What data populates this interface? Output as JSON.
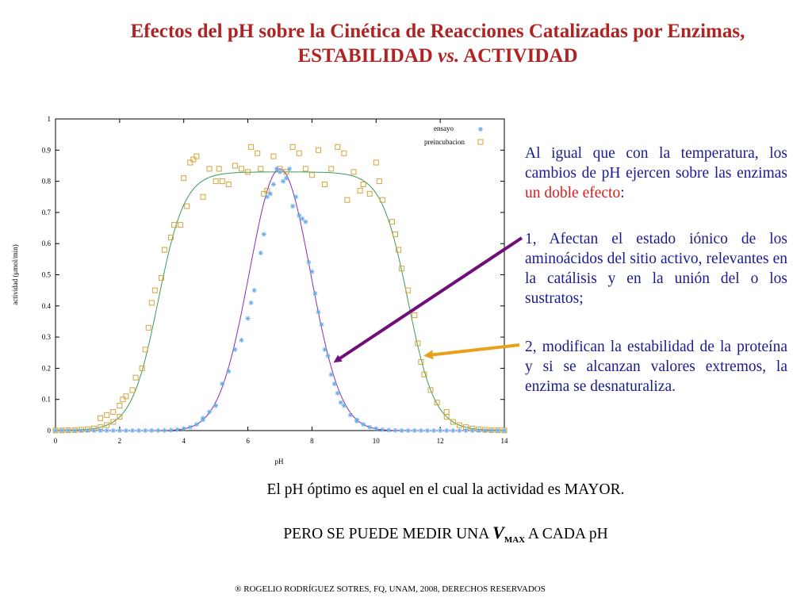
{
  "title": {
    "line1": "Efectos del pH sobre la Cinética de Reacciones Catalizadas por Enzimas,",
    "line2_a": "ESTABILIDAD ",
    "line2_vs": "vs.",
    "line2_b": " ACTIVIDAD"
  },
  "colors": {
    "title": "#b02323",
    "text_blue": "#1b1b8e",
    "highlight_red": "#e01b1b",
    "arrow_purple": "#6f0f78",
    "arrow_orange": "#e8a21a",
    "ensayo_points": "#6aaee6",
    "preincubacion_points": "#d2a53a",
    "green_curve": "#3c9a58",
    "purple_curve": "#8a2bb5"
  },
  "side_text": {
    "p1_before": "Al igual que con la temperatura, los cambios de pH ejercen sobre las enzimas ",
    "p1_red": "un doble efecto",
    "p1_after": ":",
    "p2": "1, Afectan el estado iónico de los aminoácidos del sitio activo, relevantes en la catálisis y en la unión del o los sustratos;",
    "p3": "2, modifican la estabilidad de la proteína y si se alcanzan valores extremos, la enzima se desnaturaliza."
  },
  "bottom": {
    "line1": "El pH óptimo es aquel en el cual la actividad es MAYOR.",
    "line2_pre": "PERO SE PUEDE MEDIR UNA ",
    "line2_v": "V",
    "line2_sub": "MAX",
    "line2_post": " A CADA pH",
    "copyright": "® ROGELIO RODRÍGUEZ SOTRES, FQ, UNAM, 2008, DERECHOS RESERVADOS"
  },
  "chart_data": {
    "type": "scatter",
    "xlabel": "pH",
    "ylabel": "actividad (μmol/min)",
    "xlim": [
      0,
      14
    ],
    "ylim": [
      0,
      1
    ],
    "xticks": [
      "0",
      "2",
      "4",
      "6",
      "8",
      "10",
      "12",
      "14"
    ],
    "yticks": [
      "0",
      "0.1",
      "0.2",
      "0.3",
      "0.4",
      "0.5",
      "0.6",
      "0.7",
      "0.8",
      "0.9",
      "1"
    ],
    "legend_position": "top-right",
    "series": [
      {
        "name": "ensayo",
        "marker": "asterisk",
        "points": [
          [
            5.2,
            0.15
          ],
          [
            5.4,
            0.19
          ],
          [
            5.6,
            0.26
          ],
          [
            5.8,
            0.29
          ],
          [
            6.0,
            0.36
          ],
          [
            6.1,
            0.41
          ],
          [
            6.2,
            0.45
          ],
          [
            6.4,
            0.57
          ],
          [
            6.5,
            0.63
          ],
          [
            6.6,
            0.75
          ],
          [
            6.7,
            0.76
          ],
          [
            6.8,
            0.79
          ],
          [
            6.9,
            0.84
          ],
          [
            7.0,
            0.83
          ],
          [
            7.1,
            0.8
          ],
          [
            7.2,
            0.81
          ],
          [
            7.3,
            0.84
          ],
          [
            7.4,
            0.72
          ],
          [
            7.5,
            0.75
          ],
          [
            7.6,
            0.69
          ],
          [
            7.7,
            0.68
          ],
          [
            7.8,
            0.67
          ],
          [
            7.9,
            0.54
          ],
          [
            8.0,
            0.51
          ],
          [
            8.1,
            0.44
          ],
          [
            8.2,
            0.38
          ],
          [
            8.3,
            0.34
          ],
          [
            8.4,
            0.26
          ],
          [
            8.5,
            0.24
          ],
          [
            8.6,
            0.18
          ],
          [
            8.7,
            0.15
          ],
          [
            8.8,
            0.12
          ],
          [
            8.9,
            0.09
          ],
          [
            9.0,
            0.08
          ],
          [
            4.8,
            0.06
          ],
          [
            5.0,
            0.08
          ],
          [
            4.6,
            0.04
          ],
          [
            9.2,
            0.05
          ],
          [
            9.4,
            0.03
          ]
        ]
      },
      {
        "name": "preincubacion",
        "marker": "square",
        "points": [
          [
            1.4,
            0.04
          ],
          [
            1.6,
            0.05
          ],
          [
            1.8,
            0.06
          ],
          [
            2.0,
            0.08
          ],
          [
            2.1,
            0.1
          ],
          [
            2.2,
            0.11
          ],
          [
            2.4,
            0.13
          ],
          [
            2.5,
            0.17
          ],
          [
            2.7,
            0.2
          ],
          [
            2.8,
            0.26
          ],
          [
            2.9,
            0.33
          ],
          [
            3.0,
            0.41
          ],
          [
            3.1,
            0.45
          ],
          [
            3.3,
            0.49
          ],
          [
            3.4,
            0.58
          ],
          [
            3.6,
            0.62
          ],
          [
            3.7,
            0.66
          ],
          [
            3.9,
            0.66
          ],
          [
            4.0,
            0.81
          ],
          [
            4.1,
            0.72
          ],
          [
            4.2,
            0.86
          ],
          [
            4.3,
            0.87
          ],
          [
            4.4,
            0.88
          ],
          [
            4.6,
            0.75
          ],
          [
            4.8,
            0.84
          ],
          [
            5.0,
            0.8
          ],
          [
            5.1,
            0.84
          ],
          [
            5.2,
            0.8
          ],
          [
            5.4,
            0.79
          ],
          [
            5.6,
            0.85
          ],
          [
            5.8,
            0.84
          ],
          [
            6.0,
            0.83
          ],
          [
            6.1,
            0.91
          ],
          [
            6.3,
            0.89
          ],
          [
            6.4,
            0.84
          ],
          [
            6.5,
            0.76
          ],
          [
            6.6,
            0.77
          ],
          [
            6.8,
            0.88
          ],
          [
            7.0,
            0.84
          ],
          [
            7.2,
            0.83
          ],
          [
            7.4,
            0.91
          ],
          [
            7.6,
            0.89
          ],
          [
            7.8,
            0.84
          ],
          [
            8.0,
            0.82
          ],
          [
            8.2,
            0.9
          ],
          [
            8.4,
            0.79
          ],
          [
            8.6,
            0.84
          ],
          [
            8.8,
            0.91
          ],
          [
            9.0,
            0.89
          ],
          [
            9.1,
            0.74
          ],
          [
            9.3,
            0.83
          ],
          [
            9.5,
            0.77
          ],
          [
            9.6,
            0.79
          ],
          [
            9.8,
            0.76
          ],
          [
            10.0,
            0.86
          ],
          [
            10.1,
            0.8
          ],
          [
            10.2,
            0.74
          ],
          [
            10.5,
            0.67
          ],
          [
            10.6,
            0.63
          ],
          [
            10.7,
            0.58
          ],
          [
            10.8,
            0.52
          ],
          [
            11.0,
            0.45
          ],
          [
            11.2,
            0.37
          ],
          [
            11.3,
            0.28
          ],
          [
            11.4,
            0.22
          ],
          [
            11.5,
            0.18
          ],
          [
            11.7,
            0.13
          ],
          [
            11.9,
            0.09
          ],
          [
            12.2,
            0.06
          ]
        ]
      }
    ],
    "fit_curves": [
      {
        "series": "preincubacion",
        "color": "green",
        "top": 0.83,
        "low_pKa": 3.2,
        "high_pKa": 11.0,
        "slope": 2.4
      },
      {
        "series": "ensayo",
        "color": "purple",
        "top": 0.84,
        "center": 7.0,
        "width": 0.95
      }
    ]
  }
}
